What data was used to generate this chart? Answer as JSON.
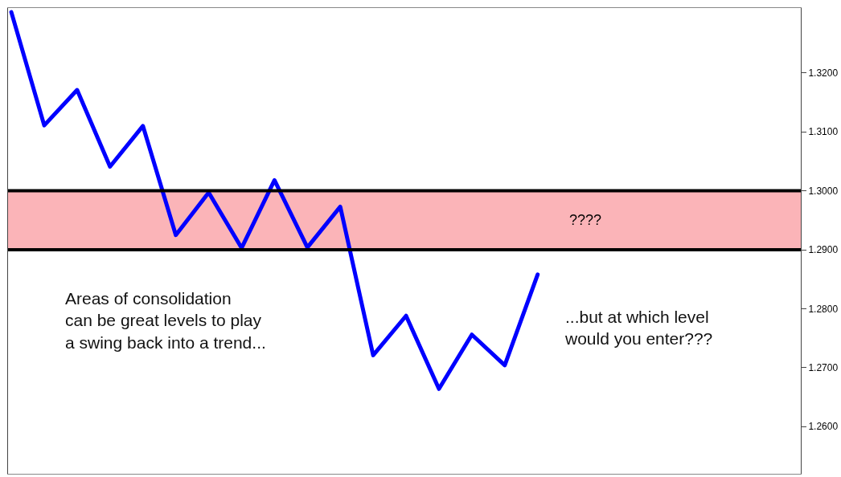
{
  "chart_data": {
    "type": "line",
    "categories": [
      null,
      null,
      null,
      null,
      null,
      null,
      null,
      null,
      null,
      null,
      null,
      null,
      null,
      null,
      null,
      null,
      null
    ],
    "series": [
      {
        "color": "#0000ff",
        "values": [
          1.3303,
          1.3111,
          1.3171,
          1.3041,
          1.311,
          1.2925,
          1.2997,
          1.2903,
          1.3018,
          1.2904,
          1.2973,
          1.2721,
          1.2788,
          1.2664,
          1.2756,
          1.2704,
          1.2858
        ]
      }
    ],
    "ylim": [
      1.252,
      1.331
    ],
    "yticks": [
      {
        "value": 1.26,
        "label": "1.2600"
      },
      {
        "value": 1.27,
        "label": "1.2700"
      },
      {
        "value": 1.28,
        "label": "1.2800"
      },
      {
        "value": 1.29,
        "label": "1.2900"
      },
      {
        "value": 1.3,
        "label": "1.3000"
      },
      {
        "value": 1.31,
        "label": "1.3100"
      },
      {
        "value": 1.32,
        "label": "1.3200"
      }
    ],
    "tick_labels": "y",
    "ref_lines": [
      {
        "axis": "y",
        "value": 1.3,
        "color": "#000000"
      },
      {
        "axis": "y",
        "value": 1.29,
        "color": "#000000"
      }
    ],
    "bands": [
      {
        "axis": "y",
        "from": 1.29,
        "to": 1.3,
        "label": "????",
        "color": "#fbb4b8"
      }
    ],
    "annotations": [
      "Areas of consolidation\ncan be great levels to play\na swing back into a trend...",
      "...but at which level\nwould you enter???"
    ]
  }
}
